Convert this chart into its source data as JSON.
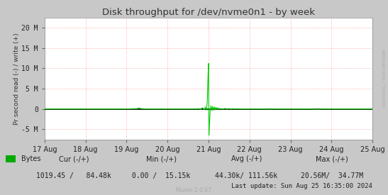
{
  "title": "Disk throughput for /dev/nvme0n1 - by week",
  "ylabel": "Pr second read (-) / write (+)",
  "background_color": "#c8c8c8",
  "plot_bg_color": "#ffffff",
  "grid_color": "#ff9999",
  "yticks": [
    -5000000,
    0,
    5000000,
    10000000,
    15000000,
    20000000
  ],
  "ytick_labels": [
    "-5 M",
    "0",
    "5 M",
    "10 M",
    "15 M",
    "20 M"
  ],
  "ylim": [
    -7500000,
    22500000
  ],
  "xtick_labels": [
    "17 Aug",
    "18 Aug",
    "19 Aug",
    "20 Aug",
    "21 Aug",
    "22 Aug",
    "23 Aug",
    "24 Aug",
    "25 Aug"
  ],
  "line_color": "#00cc00",
  "zero_line_color": "#000000",
  "legend_label": "Bytes",
  "legend_color": "#00aa00",
  "footer_cur_label": "Cur (-/+)",
  "footer_cur_val": "1019.45 /   84.48k",
  "footer_min_label": "Min (-/+)",
  "footer_min_val": "0.00 /  15.15k",
  "footer_avg_label": "Avg (-/+)",
  "footer_avg_val": "44.30k/ 111.56k",
  "footer_max_label": "Max (-/+)",
  "footer_max_val": "20.56M/  34.77M",
  "footer_update": "Last update: Sun Aug 25 16:35:00 2024",
  "munin_version": "Munin 2.0.67",
  "rrdtool_label": "RRDTOOL / TOBI OETIKER"
}
